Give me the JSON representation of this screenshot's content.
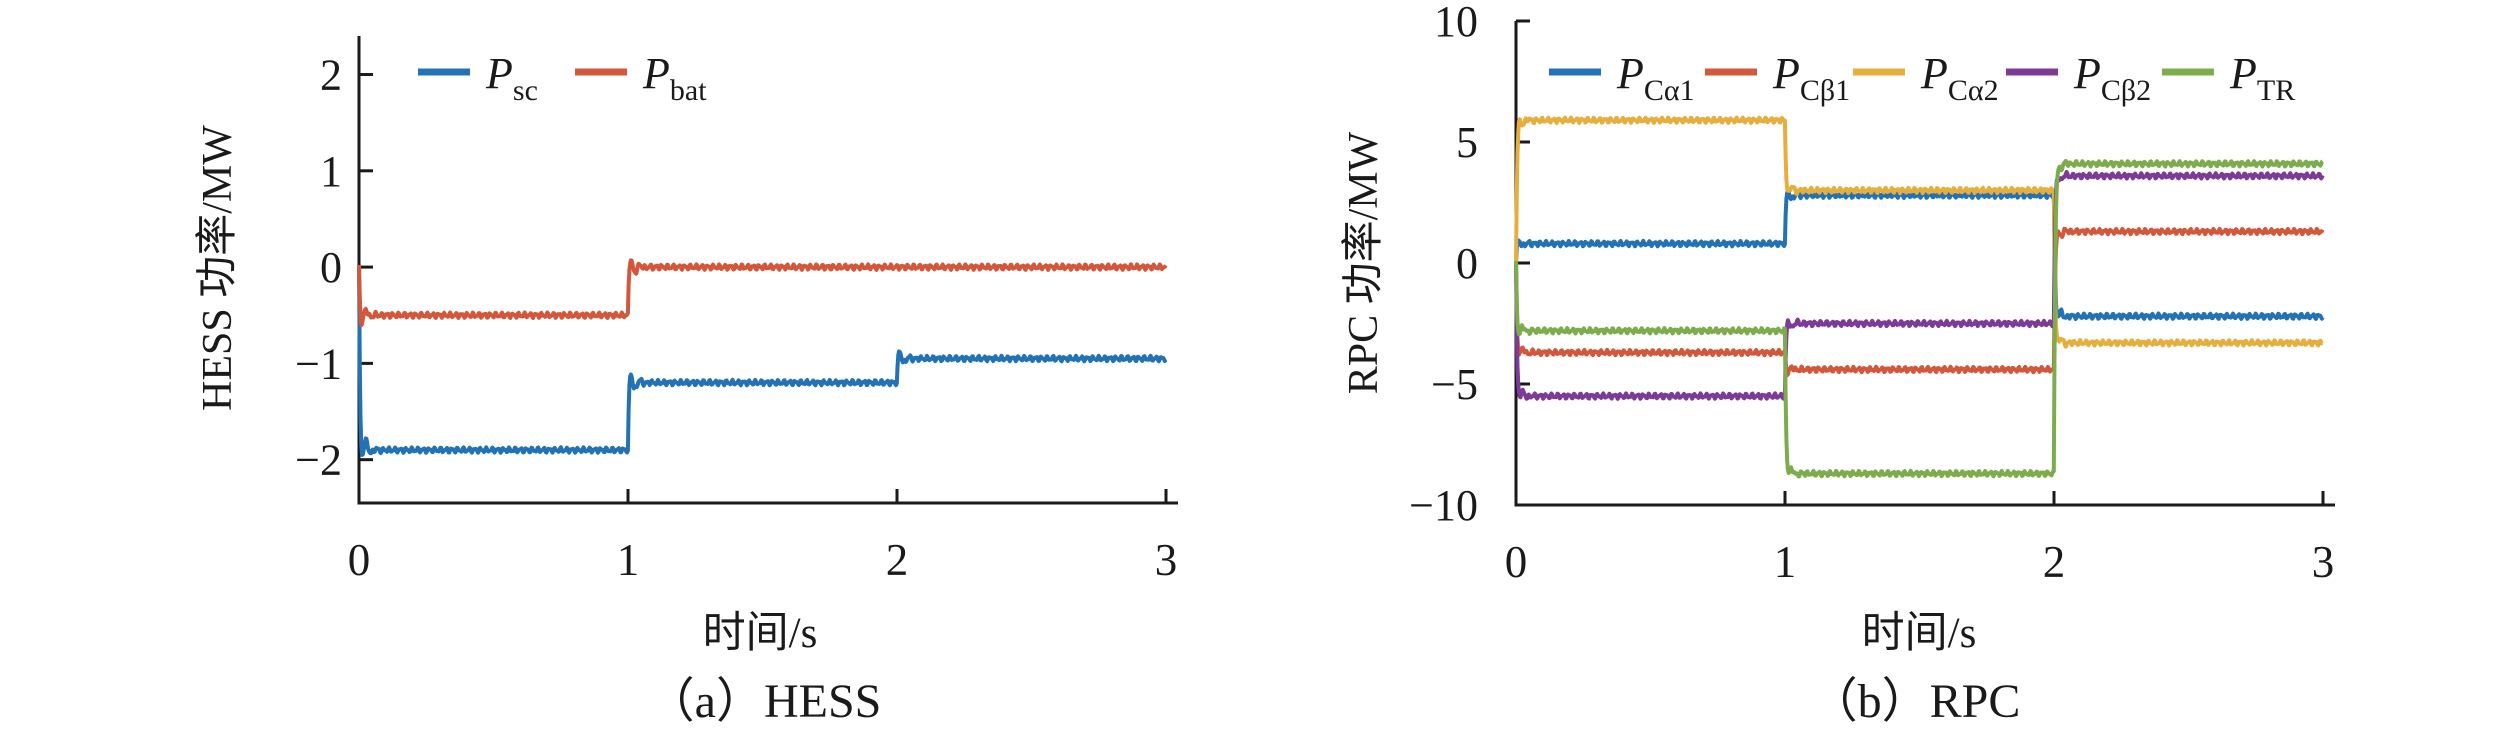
{
  "figure": {
    "background_color": "#ffffff",
    "axis_color": "#1a1a1a"
  },
  "chart_data": [
    {
      "id": "hess",
      "type": "line",
      "title": "（a）HESS",
      "xlabel": "时间/s",
      "ylabel": "HESS 功率/MW",
      "xlim": [
        0,
        3
      ],
      "ylim": [
        -2.45,
        2.4
      ],
      "xticks": [
        0,
        1,
        2,
        3
      ],
      "yticks": [
        2,
        1,
        0,
        -1,
        -2
      ],
      "grid": false,
      "legend_position": "inside-top-left",
      "overshoot_cap": 0.4,
      "ripple": 0.018,
      "series": [
        {
          "name": "P_sc",
          "label": "P",
          "sub": "sc",
          "color": "#2272B5",
          "segments": [
            {
              "t_start": 0,
              "t_end": 1,
              "value": -1.9
            },
            {
              "t_start": 1,
              "t_end": 2,
              "value": -1.2
            },
            {
              "t_start": 2,
              "t_end": 3,
              "value": -0.95
            }
          ]
        },
        {
          "name": "P_bat",
          "label": "P",
          "sub": "bat",
          "color": "#D2573B",
          "segments": [
            {
              "t_start": 0,
              "t_end": 1,
              "value": -0.5
            },
            {
              "t_start": 1,
              "t_end": 2,
              "value": 0
            },
            {
              "t_start": 2,
              "t_end": 3,
              "value": 0
            }
          ]
        }
      ]
    },
    {
      "id": "rpc",
      "type": "line",
      "title": "（b）RPC",
      "xlabel": "时间/s",
      "ylabel": "RPC 功率/MW",
      "xlim": [
        0,
        3
      ],
      "ylim": [
        -10,
        10
      ],
      "xticks": [
        0,
        1,
        2,
        3
      ],
      "yticks": [
        10,
        5,
        0,
        -5,
        -10
      ],
      "grid": false,
      "legend_position": "inside-top",
      "overshoot_cap": 0.7,
      "ripple": 0.07,
      "series": [
        {
          "name": "P_Ca1",
          "label": "P",
          "sub": "Cα1",
          "color": "#2272B5",
          "segments": [
            {
              "t_start": 0,
              "t_end": 1,
              "value": 0.8
            },
            {
              "t_start": 1,
              "t_end": 2,
              "value": 2.8
            },
            {
              "t_start": 2,
              "t_end": 3,
              "value": -2.2
            }
          ]
        },
        {
          "name": "P_Cb1",
          "label": "P",
          "sub": "Cβ1",
          "color": "#D2573B",
          "segments": [
            {
              "t_start": 0,
              "t_end": 1,
              "value": -3.7
            },
            {
              "t_start": 1,
              "t_end": 2,
              "value": -4.4
            },
            {
              "t_start": 2,
              "t_end": 3,
              "value": 1.3
            }
          ]
        },
        {
          "name": "P_Ca2",
          "label": "P",
          "sub": "Cα2",
          "color": "#E5AE3D",
          "segments": [
            {
              "t_start": 0,
              "t_end": 1,
              "value": 5.9
            },
            {
              "t_start": 1,
              "t_end": 2,
              "value": 3.0
            },
            {
              "t_start": 2,
              "t_end": 3,
              "value": -3.3
            }
          ]
        },
        {
          "name": "P_Cb2",
          "label": "P",
          "sub": "Cβ2",
          "color": "#7D3A96",
          "segments": [
            {
              "t_start": 0,
              "t_end": 1,
              "value": -5.5
            },
            {
              "t_start": 1,
              "t_end": 2,
              "value": -2.5
            },
            {
              "t_start": 2,
              "t_end": 3,
              "value": 3.6
            }
          ]
        },
        {
          "name": "P_TR",
          "label": "P",
          "sub": "TR",
          "color": "#7CAC4C",
          "segments": [
            {
              "t_start": 0,
              "t_end": 1,
              "value": -2.8
            },
            {
              "t_start": 1,
              "t_end": 2,
              "value": -8.7
            },
            {
              "t_start": 2,
              "t_end": 3,
              "value": 4.1
            }
          ]
        }
      ]
    }
  ]
}
